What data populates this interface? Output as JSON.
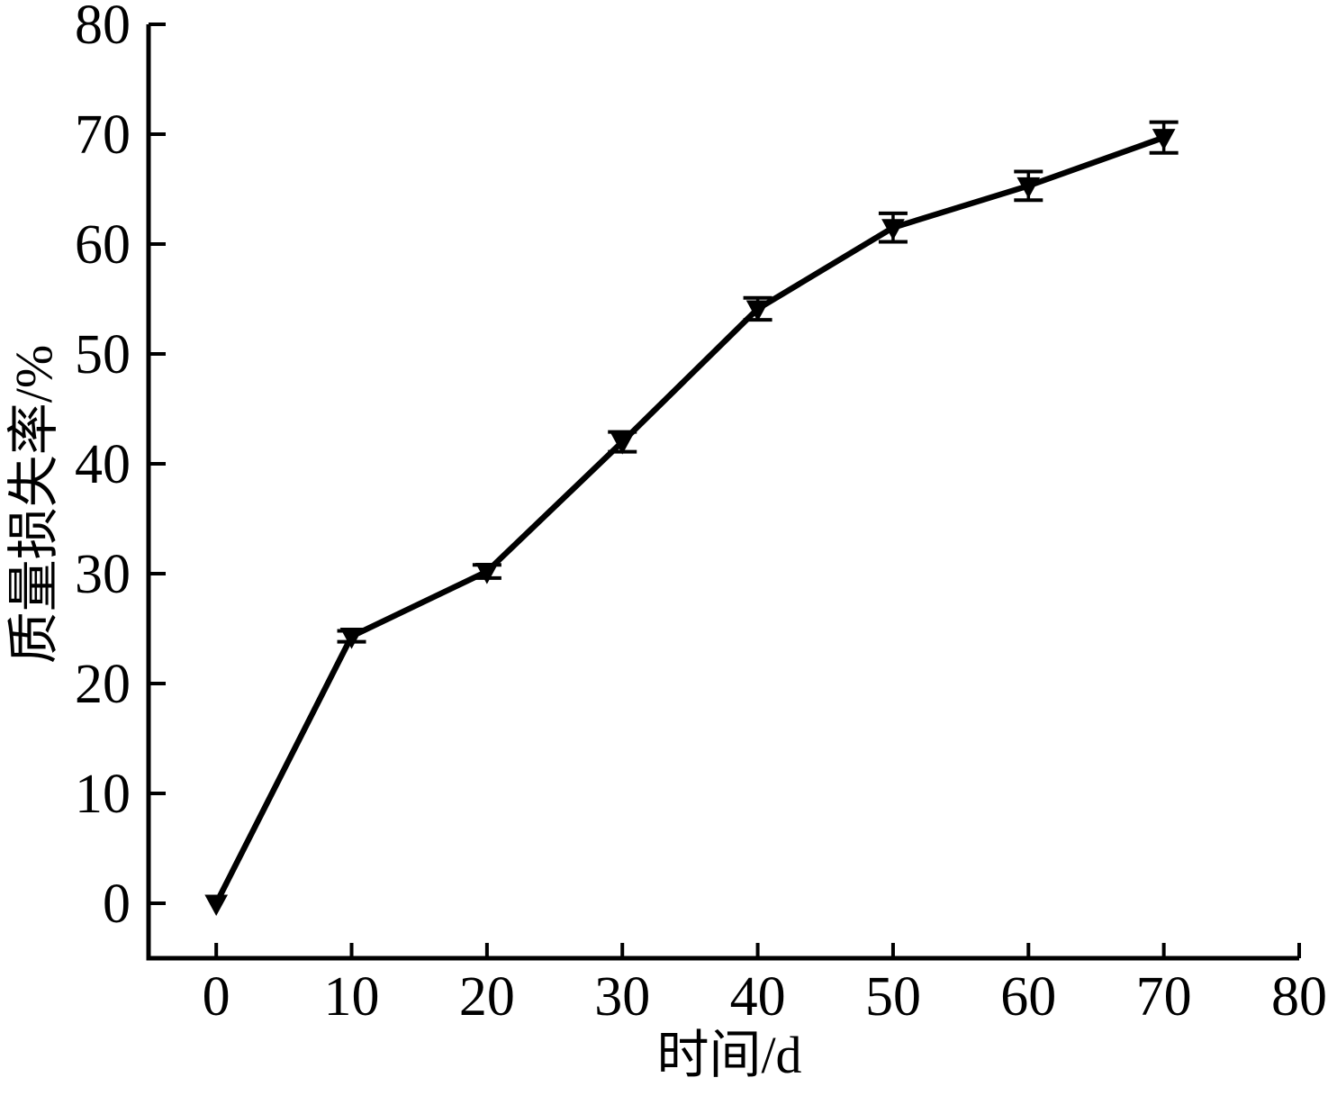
{
  "figure": {
    "background": "#ffffff",
    "foreground": "#000000"
  },
  "chart_data": {
    "type": "line",
    "title": "",
    "xlabel": "时间/d",
    "ylabel": "质量损失率/%",
    "xlim": [
      -5,
      80
    ],
    "ylim": [
      -5,
      80
    ],
    "xticks": [
      0,
      10,
      20,
      30,
      40,
      50,
      60,
      70,
      80
    ],
    "yticks": [
      0,
      10,
      20,
      30,
      40,
      50,
      60,
      70,
      80
    ],
    "grid": false,
    "legend": false,
    "axes": "left-bottom-only, ticks pointing inward",
    "series": [
      {
        "name": "质量损失率",
        "marker": "triangle-down",
        "line_style": "solid",
        "color": "#000000",
        "x": [
          0,
          10,
          20,
          30,
          40,
          50,
          60,
          70
        ],
        "y": [
          0,
          24.3,
          30.2,
          42.0,
          54.1,
          61.5,
          65.3,
          69.7
        ],
        "yerr": [
          0,
          0.5,
          0.6,
          0.9,
          1.0,
          1.3,
          1.3,
          1.4
        ]
      }
    ]
  }
}
